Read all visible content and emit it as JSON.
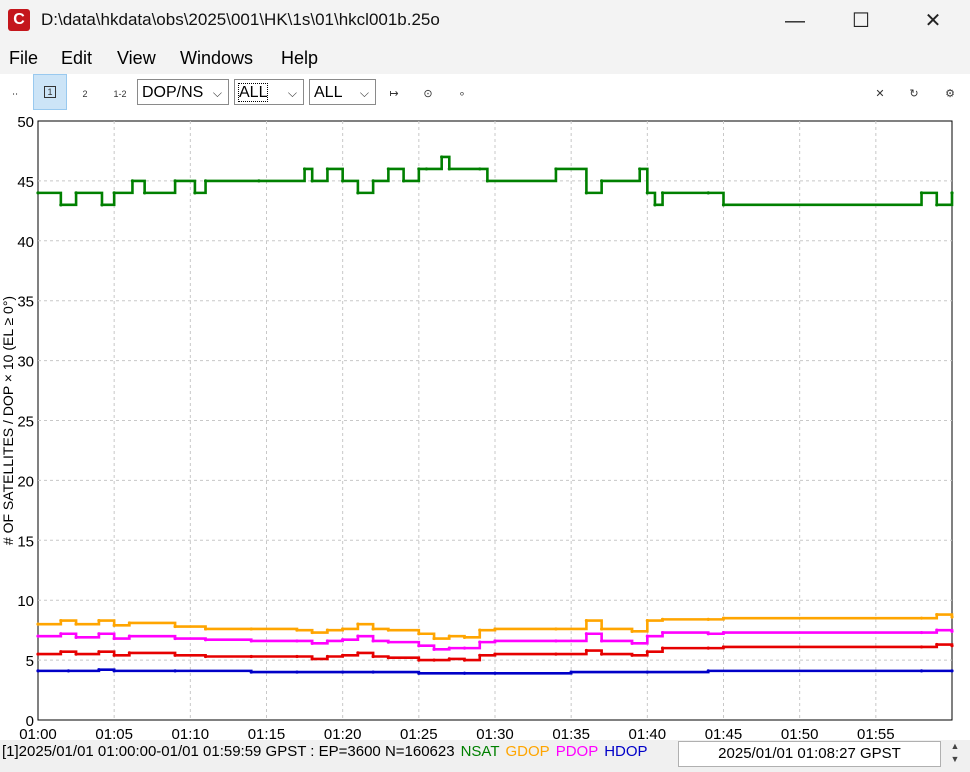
{
  "window": {
    "title": "D:\\data\\hkdata\\obs\\2025\\001\\HK\\1s\\01\\hkcl001b.25o",
    "app_icon_letter": "C",
    "minimize_icon": "minimize-icon",
    "maximize_icon": "maximize-icon",
    "close_icon": "close-icon"
  },
  "menu": [
    "File",
    "Edit",
    "View",
    "Windows",
    "Help"
  ],
  "toolbar": {
    "btn1_label": "1",
    "btn2_label": "2",
    "btn12_label": "1-2",
    "plot_type": "DOP/NS",
    "select2": "ALL",
    "select3": "ALL",
    "icons": [
      "fit-width-icon",
      "center-icon",
      "point-icon",
      "clear-icon",
      "refresh-icon",
      "settings-icon"
    ]
  },
  "status": {
    "summary": "[1]2025/01/01 01:00:00-01/01 01:59:59 GPST : EP=3600 N=160623",
    "legend": [
      {
        "label": "NSAT",
        "color": "#008000"
      },
      {
        "label": "GDOP",
        "color": "#ffa500"
      },
      {
        "label": "PDOP",
        "color": "#ff00ff"
      },
      {
        "label": "HDOP",
        "color": "#0000c8"
      }
    ],
    "time": "2025/01/01 01:08:27 GPST"
  },
  "chart_data": {
    "type": "line",
    "title": "",
    "xlabel": "",
    "ylabel": "# OF SATELLITES / DOP × 10 (EL ≥ 0°)",
    "xlim": [
      0,
      60
    ],
    "ylim": [
      0,
      50
    ],
    "x_ticks": [
      "01:00",
      "01:05",
      "01:10",
      "01:15",
      "01:20",
      "01:25",
      "01:30",
      "01:35",
      "01:40",
      "01:45",
      "01:50",
      "01:55"
    ],
    "y_ticks": [
      0,
      5,
      10,
      15,
      20,
      25,
      30,
      35,
      40,
      45,
      50
    ],
    "grid": true,
    "series": [
      {
        "name": "NSAT",
        "color": "#008000",
        "x": [
          0,
          1.5,
          2.5,
          4.2,
          5,
          6.2,
          7,
          9,
          10.3,
          11,
          14.5,
          17.5,
          18,
          19,
          20,
          21,
          22,
          23,
          24,
          25,
          25.5,
          26.5,
          27,
          29,
          29.5,
          34,
          36,
          37,
          39.5,
          40,
          40.5,
          41,
          44,
          45,
          58,
          59,
          60
        ],
        "y": [
          44,
          43,
          44,
          43,
          44,
          45,
          44,
          45,
          44,
          45,
          45,
          46,
          45,
          46,
          45,
          44,
          45,
          46,
          45,
          46,
          46,
          47,
          46,
          46,
          45,
          46,
          44,
          45,
          46,
          44,
          43,
          44,
          44,
          43,
          44,
          43,
          44
        ]
      },
      {
        "name": "GDOP",
        "color": "#ffa500",
        "x": [
          0,
          1.5,
          2.5,
          4,
          5,
          6,
          9,
          11,
          14,
          17,
          18,
          19,
          20,
          21,
          22,
          23,
          25,
          26,
          27,
          28,
          29,
          30,
          34,
          36,
          37,
          39,
          40,
          41,
          44,
          45,
          58,
          59,
          60
        ],
        "y": [
          8.0,
          8.3,
          8.0,
          8.3,
          7.9,
          8.1,
          7.8,
          7.6,
          7.6,
          7.5,
          7.3,
          7.5,
          7.6,
          8.0,
          7.6,
          7.5,
          7.2,
          6.8,
          7.0,
          6.9,
          7.5,
          7.6,
          7.6,
          8.3,
          7.6,
          7.4,
          8.3,
          8.4,
          8.4,
          8.5,
          8.5,
          8.8,
          8.6
        ]
      },
      {
        "name": "PDOP",
        "color": "#ff00ff",
        "x": [
          0,
          1.5,
          2.5,
          4,
          5,
          6,
          9,
          11,
          14,
          17,
          18,
          19,
          20,
          21,
          22,
          23,
          25,
          26,
          27,
          28,
          29,
          30,
          34,
          36,
          37,
          39,
          40,
          41,
          44,
          45,
          58,
          59,
          60
        ],
        "y": [
          7.0,
          7.2,
          6.9,
          7.2,
          6.8,
          7.0,
          6.8,
          6.7,
          6.6,
          6.6,
          6.4,
          6.6,
          6.7,
          7.0,
          6.6,
          6.5,
          6.2,
          5.9,
          6.0,
          6.0,
          6.5,
          6.6,
          6.6,
          7.2,
          6.6,
          6.4,
          7.0,
          7.3,
          7.2,
          7.3,
          7.3,
          7.5,
          7.4
        ]
      },
      {
        "name": "HDOP",
        "color": "#0000c8",
        "x": [
          0,
          2,
          4,
          5,
          9,
          14,
          17,
          20,
          22,
          25,
          28,
          30,
          35,
          40,
          44,
          58,
          60
        ],
        "y": [
          4.1,
          4.1,
          4.2,
          4.1,
          4.1,
          4.0,
          4.0,
          4.0,
          4.0,
          3.9,
          3.9,
          3.9,
          4.0,
          4.0,
          4.1,
          4.1,
          4.1
        ]
      },
      {
        "name": "",
        "color": "#e60000",
        "x": [
          0,
          1.5,
          2.5,
          4,
          5,
          6,
          9,
          11,
          14,
          17,
          18,
          19,
          20,
          21,
          22,
          23,
          25,
          26,
          27,
          28,
          29,
          30,
          34,
          36,
          37,
          39,
          40,
          41,
          44,
          45,
          58,
          59,
          60
        ],
        "y": [
          5.5,
          5.7,
          5.5,
          5.7,
          5.4,
          5.6,
          5.4,
          5.3,
          5.3,
          5.3,
          5.1,
          5.3,
          5.4,
          5.6,
          5.3,
          5.2,
          5.0,
          5.0,
          5.1,
          5.0,
          5.4,
          5.5,
          5.5,
          5.8,
          5.5,
          5.4,
          5.7,
          6.0,
          6.0,
          6.1,
          6.1,
          6.3,
          6.2
        ]
      }
    ]
  }
}
